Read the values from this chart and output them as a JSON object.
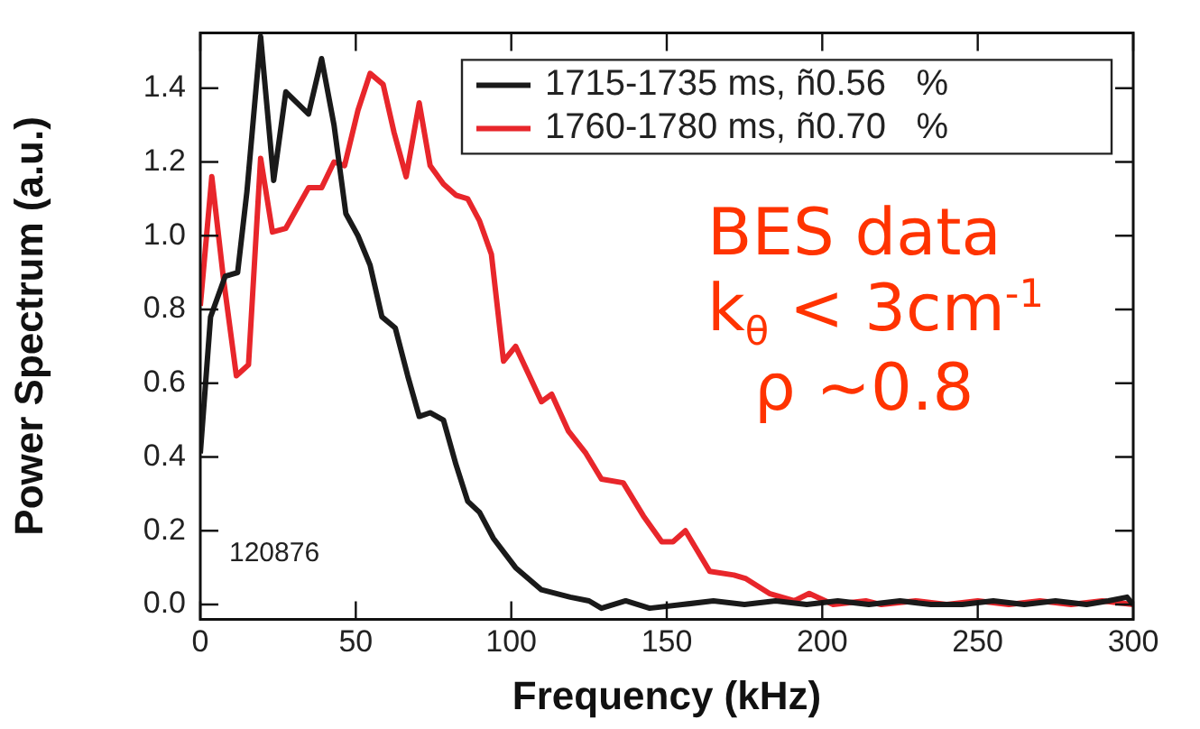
{
  "chart_data": {
    "type": "line",
    "xlabel": "Frequency (kHz)",
    "ylabel": "Power Spectrum (a.u.)",
    "xlim": [
      0,
      300
    ],
    "xticks": [
      0,
      50,
      100,
      150,
      200,
      250,
      300
    ],
    "ylim": [
      -0.04,
      1.55
    ],
    "yticks": [
      {
        "value": 0,
        "label": "0.0"
      },
      {
        "value": 0.2,
        "label": "0.2"
      },
      {
        "value": 0.4,
        "label": "0.4"
      },
      {
        "value": 0.6,
        "label": "0.6"
      },
      {
        "value": 0.8,
        "label": "0.8"
      },
      {
        "value": 1.0,
        "label": "1.0"
      },
      {
        "value": 1.2,
        "label": "1.2"
      },
      {
        "value": 1.4,
        "label": "1.4"
      }
    ],
    "grid": false,
    "legend": "top right",
    "marker": "none",
    "line_style": "solid",
    "series": [
      {
        "name": "1715-1735 ms, ñ0.56   %",
        "color": "#1a1a1a",
        "x": [
          0,
          3.3,
          8,
          12,
          15,
          19.4,
          23.6,
          27.5,
          34.8,
          39,
          43,
          46.8,
          50.7,
          54.6,
          58.4,
          62.7,
          66.7,
          70.4,
          73.9,
          78.2,
          82.2,
          86,
          89.8,
          94.2,
          101.4,
          109.7,
          119,
          125,
          129,
          136.8,
          144.5,
          155,
          165,
          175,
          185,
          195,
          205,
          215,
          225,
          235,
          245,
          255,
          265,
          275,
          285,
          292,
          298,
          300
        ],
        "values": [
          0.41,
          0.78,
          0.89,
          0.9,
          1.12,
          1.54,
          1.15,
          1.39,
          1.33,
          1.48,
          1.3,
          1.06,
          1.0,
          0.92,
          0.78,
          0.75,
          0.62,
          0.51,
          0.52,
          0.5,
          0.38,
          0.28,
          0.25,
          0.18,
          0.1,
          0.04,
          0.02,
          0.01,
          -0.01,
          0.01,
          -0.01,
          0.0,
          0.01,
          0.0,
          0.01,
          0.0,
          0.01,
          0.0,
          0.01,
          0.0,
          0.0,
          0.01,
          0.0,
          0.01,
          0.0,
          0.01,
          0.02,
          0.0
        ]
      },
      {
        "name": "1760-1780 ms, ñ0.70   %",
        "color": "#e8262b",
        "x": [
          0,
          3.7,
          7.5,
          11.6,
          15.5,
          19.4,
          23.2,
          27.5,
          34.8,
          39,
          43,
          46.4,
          50.7,
          54.6,
          58.8,
          62.3,
          66.2,
          70.4,
          73.9,
          78.2,
          82.2,
          86,
          89.8,
          93.6,
          97.5,
          101.4,
          109.7,
          113,
          118.4,
          124,
          129,
          136,
          142.5,
          148.4,
          152,
          156,
          163.8,
          171.6,
          175.5,
          183,
          191,
          195.8,
          203.5,
          214,
          219,
          230,
          240,
          250,
          260,
          270,
          280,
          290,
          300
        ],
        "values": [
          0.81,
          1.16,
          0.88,
          0.62,
          0.65,
          1.21,
          1.01,
          1.02,
          1.13,
          1.13,
          1.2,
          1.19,
          1.34,
          1.44,
          1.41,
          1.28,
          1.16,
          1.36,
          1.19,
          1.14,
          1.11,
          1.1,
          1.04,
          0.95,
          0.66,
          0.7,
          0.55,
          0.57,
          0.47,
          0.41,
          0.34,
          0.33,
          0.24,
          0.17,
          0.17,
          0.2,
          0.09,
          0.08,
          0.07,
          0.03,
          0.01,
          0.03,
          0.0,
          0.01,
          0.0,
          0.01,
          0.0,
          0.01,
          0.0,
          0.01,
          0.0,
          0.01,
          0.0
        ]
      }
    ],
    "annotations": [
      "BES data",
      "k$_{θ}$ < 3cm$^{-1}$",
      "ρ ~0.8",
      "120876"
    ]
  }
}
